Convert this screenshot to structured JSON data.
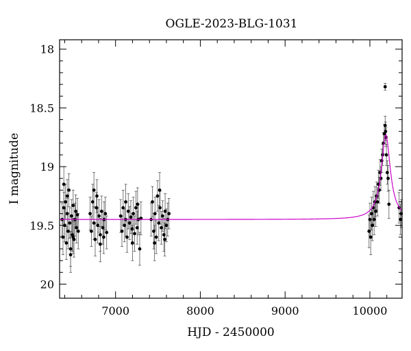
{
  "chart_data": {
    "type": "scatter",
    "title": "OGLE-2023-BLG-1031",
    "xlabel": "HJD - 2450000",
    "ylabel": "I magnitude",
    "xlim": [
      6340,
      10380
    ],
    "ylim": [
      20.12,
      17.92
    ],
    "y_inverted": true,
    "xticks": [
      7000,
      8000,
      9000,
      10000
    ],
    "xtick_labels": [
      "7000",
      "8000",
      "9000",
      "10000"
    ],
    "yticks": [
      18,
      18.5,
      19,
      19.5,
      20
    ],
    "ytick_labels": [
      "18",
      "18.5",
      "19",
      "19.5",
      "20"
    ],
    "grid": false,
    "series": [
      {
        "kind": "points_with_errorbars",
        "color": "#000000",
        "points": [
          [
            6370,
            19.45,
            0.14
          ],
          [
            6380,
            19.6,
            0.15
          ],
          [
            6390,
            19.35,
            0.13
          ],
          [
            6400,
            19.5,
            0.14
          ],
          [
            6410,
            19.3,
            0.15
          ],
          [
            6420,
            19.65,
            0.14
          ],
          [
            6430,
            19.4,
            0.13
          ],
          [
            6440,
            19.55,
            0.15
          ],
          [
            6450,
            19.2,
            0.14
          ],
          [
            6460,
            19.48,
            0.13
          ],
          [
            6470,
            19.7,
            0.15
          ],
          [
            6480,
            19.42,
            0.14
          ],
          [
            6490,
            19.58,
            0.14
          ],
          [
            6500,
            19.33,
            0.13
          ],
          [
            6510,
            19.62,
            0.15
          ],
          [
            6520,
            19.45,
            0.14
          ],
          [
            6530,
            19.38,
            0.14
          ],
          [
            6540,
            19.52,
            0.13
          ],
          [
            6550,
            19.41,
            0.14
          ],
          [
            6560,
            19.55,
            0.15
          ],
          [
            6390,
            19.15,
            0.15
          ],
          [
            6470,
            19.75,
            0.15
          ],
          [
            6430,
            19.25,
            0.14
          ],
          [
            6500,
            19.6,
            0.14
          ],
          [
            6700,
            19.4,
            0.14
          ],
          [
            6715,
            19.55,
            0.13
          ],
          [
            6730,
            19.3,
            0.15
          ],
          [
            6745,
            19.48,
            0.14
          ],
          [
            6760,
            19.62,
            0.14
          ],
          [
            6775,
            19.35,
            0.13
          ],
          [
            6790,
            19.5,
            0.15
          ],
          [
            6805,
            19.42,
            0.14
          ],
          [
            6820,
            19.58,
            0.14
          ],
          [
            6835,
            19.38,
            0.13
          ],
          [
            6850,
            19.52,
            0.14
          ],
          [
            6865,
            19.45,
            0.15
          ],
          [
            6880,
            19.4,
            0.14
          ],
          [
            6895,
            19.56,
            0.14
          ],
          [
            6745,
            19.2,
            0.15
          ],
          [
            6820,
            19.66,
            0.15
          ],
          [
            6780,
            19.25,
            0.14
          ],
          [
            6860,
            19.6,
            0.14
          ],
          [
            7060,
            19.42,
            0.14
          ],
          [
            7075,
            19.55,
            0.13
          ],
          [
            7090,
            19.35,
            0.15
          ],
          [
            7105,
            19.5,
            0.14
          ],
          [
            7120,
            19.45,
            0.14
          ],
          [
            7135,
            19.6,
            0.13
          ],
          [
            7150,
            19.38,
            0.15
          ],
          [
            7165,
            19.48,
            0.14
          ],
          [
            7180,
            19.43,
            0.14
          ],
          [
            7195,
            19.53,
            0.13
          ],
          [
            7210,
            19.4,
            0.14
          ],
          [
            7225,
            19.57,
            0.15
          ],
          [
            7240,
            19.35,
            0.14
          ],
          [
            7255,
            19.52,
            0.14
          ],
          [
            7270,
            19.45,
            0.13
          ],
          [
            7285,
            19.7,
            0.14
          ],
          [
            7300,
            19.44,
            0.14
          ],
          [
            7120,
            19.3,
            0.15
          ],
          [
            7200,
            19.65,
            0.15
          ],
          [
            7260,
            19.32,
            0.14
          ],
          [
            7420,
            19.45,
            0.14
          ],
          [
            7435,
            19.3,
            0.13
          ],
          [
            7450,
            19.55,
            0.15
          ],
          [
            7465,
            19.4,
            0.14
          ],
          [
            7480,
            19.6,
            0.14
          ],
          [
            7495,
            19.25,
            0.13
          ],
          [
            7510,
            19.48,
            0.15
          ],
          [
            7525,
            19.35,
            0.14
          ],
          [
            7540,
            19.52,
            0.14
          ],
          [
            7555,
            19.42,
            0.13
          ],
          [
            7570,
            19.58,
            0.14
          ],
          [
            7585,
            19.38,
            0.15
          ],
          [
            7600,
            19.5,
            0.14
          ],
          [
            7615,
            19.45,
            0.14
          ],
          [
            7630,
            19.4,
            0.13
          ],
          [
            7460,
            19.65,
            0.15
          ],
          [
            7520,
            19.2,
            0.15
          ],
          [
            7580,
            19.62,
            0.14
          ],
          [
            9990,
            19.55,
            0.14
          ],
          [
            10000,
            19.45,
            0.14
          ],
          [
            10010,
            19.6,
            0.15
          ],
          [
            10020,
            19.4,
            0.14
          ],
          [
            10030,
            19.5,
            0.13
          ],
          [
            10040,
            19.35,
            0.14
          ],
          [
            10050,
            19.45,
            0.13
          ],
          [
            10060,
            19.3,
            0.13
          ],
          [
            10070,
            19.38,
            0.13
          ],
          [
            10080,
            19.25,
            0.12
          ],
          [
            10090,
            19.3,
            0.12
          ],
          [
            10100,
            19.15,
            0.12
          ],
          [
            10110,
            19.2,
            0.11
          ],
          [
            10120,
            19.05,
            0.11
          ],
          [
            10130,
            19.1,
            0.1
          ],
          [
            10140,
            18.95,
            0.1
          ],
          [
            10150,
            18.9,
            0.09
          ],
          [
            10160,
            18.8,
            0.09
          ],
          [
            10170,
            18.72,
            0.08
          ],
          [
            10180,
            18.65,
            0.08
          ],
          [
            10185,
            18.7,
            0.08
          ],
          [
            10190,
            18.75,
            0.08
          ],
          [
            10195,
            18.9,
            0.09
          ],
          [
            10205,
            19.05,
            0.1
          ],
          [
            10215,
            19.1,
            0.11
          ],
          [
            10225,
            19.32,
            0.12
          ],
          [
            10180,
            18.32,
            0.03
          ],
          [
            10345,
            19.35,
            0.13
          ],
          [
            10360,
            19.45,
            0.13
          ],
          [
            10370,
            19.4,
            0.12
          ]
        ]
      },
      {
        "kind": "model_curve",
        "color": "#cc00cc",
        "baseline": 19.45,
        "peak_magnitude": 18.73,
        "t0": 10188,
        "tE": 55
      }
    ]
  }
}
